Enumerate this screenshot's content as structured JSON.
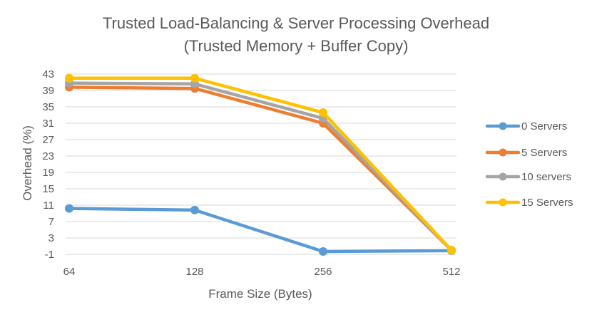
{
  "chart_data": {
    "type": "line",
    "title": "Trusted Load-Balancing & Server Processing Overhead",
    "subtitle": "(Trusted Memory + Buffer Copy)",
    "xlabel": "Frame Size (Bytes)",
    "ylabel": "Overhead (%)",
    "categories": [
      "64",
      "128",
      "256",
      "512"
    ],
    "ylim": [
      -1,
      43
    ],
    "yticks": [
      -1,
      3,
      7,
      11,
      15,
      19,
      23,
      27,
      31,
      35,
      39,
      43
    ],
    "grid": true,
    "legend_position": "right",
    "series": [
      {
        "name": "0 Servers",
        "color": "#5B9BD5",
        "values": [
          10.2,
          9.8,
          -0.3,
          -0.1
        ]
      },
      {
        "name": "5 Servers",
        "color": "#ED7D31",
        "values": [
          39.8,
          39.5,
          31.0,
          0.0
        ]
      },
      {
        "name": "10 servers",
        "color": "#A5A5A5",
        "values": [
          40.8,
          40.6,
          32.2,
          0.0
        ]
      },
      {
        "name": "15 Servers",
        "color": "#FFC000",
        "values": [
          42.0,
          42.0,
          33.6,
          0.0
        ]
      }
    ]
  }
}
